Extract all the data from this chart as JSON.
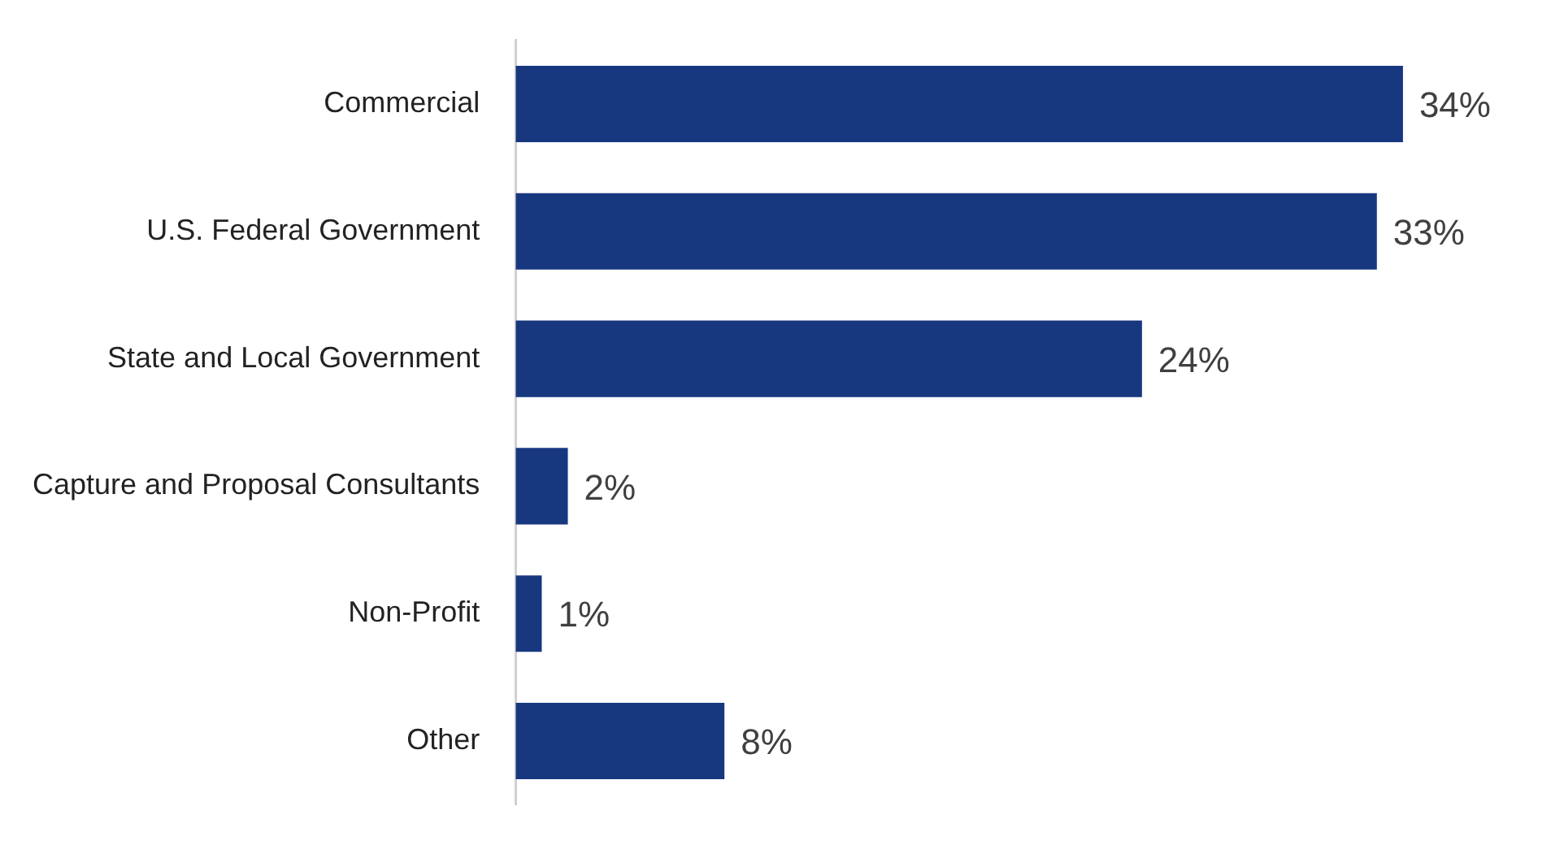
{
  "chart_data": {
    "type": "bar",
    "orientation": "horizontal",
    "categories": [
      "Commercial",
      "U.S. Federal Government",
      "State and Local Government",
      "Capture and Proposal Consultants",
      "Non-Profit",
      "Other"
    ],
    "values": [
      34,
      33,
      24,
      2,
      1,
      8
    ],
    "value_labels": [
      "34%",
      "33%",
      "24%",
      "2%",
      "1%",
      "8%"
    ],
    "color": "#17377f",
    "legend": false
  }
}
